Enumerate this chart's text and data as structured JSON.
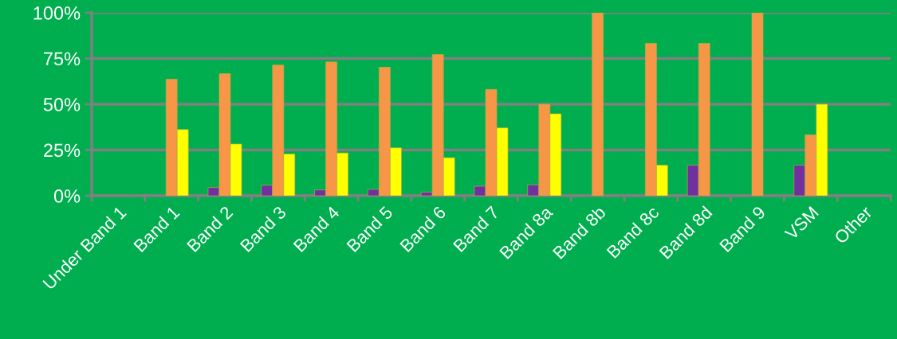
{
  "chart_data": {
    "type": "bar",
    "categories": [
      "Under Band 1",
      "Band 1",
      "Band 2",
      "Band 3",
      "Band 4",
      "Band 5",
      "Band 6",
      "Band 7",
      "Band 8a",
      "Band 8b",
      "Band 8c",
      "Band 8d",
      "Band 9",
      "VSM",
      "Other"
    ],
    "series": [
      {
        "color": "#7030a0",
        "values": [
          null,
          null,
          4.5,
          5.7,
          3.2,
          3.5,
          2,
          5.2,
          6,
          null,
          null,
          16.7,
          null,
          16.7,
          null
        ]
      },
      {
        "color": "#f79646",
        "values": [
          null,
          63.7,
          66.7,
          71.4,
          73.1,
          70.2,
          77.2,
          58.1,
          50,
          100,
          83.3,
          83.3,
          100,
          33.3,
          null
        ]
      },
      {
        "color": "#ffff00",
        "values": [
          null,
          36.2,
          28.3,
          22.8,
          23.4,
          26.2,
          20.8,
          37.1,
          44.8,
          null,
          16.7,
          null,
          null,
          50,
          null
        ]
      }
    ],
    "ylim": [
      0,
      100
    ],
    "yticks": [
      {
        "value": 0,
        "label": "0%"
      },
      {
        "value": 25,
        "label": "25%"
      },
      {
        "value": 50,
        "label": "50%"
      },
      {
        "value": 75,
        "label": "75%"
      },
      {
        "value": 100,
        "label": "100%"
      }
    ],
    "grid": "y",
    "legend": false
  }
}
